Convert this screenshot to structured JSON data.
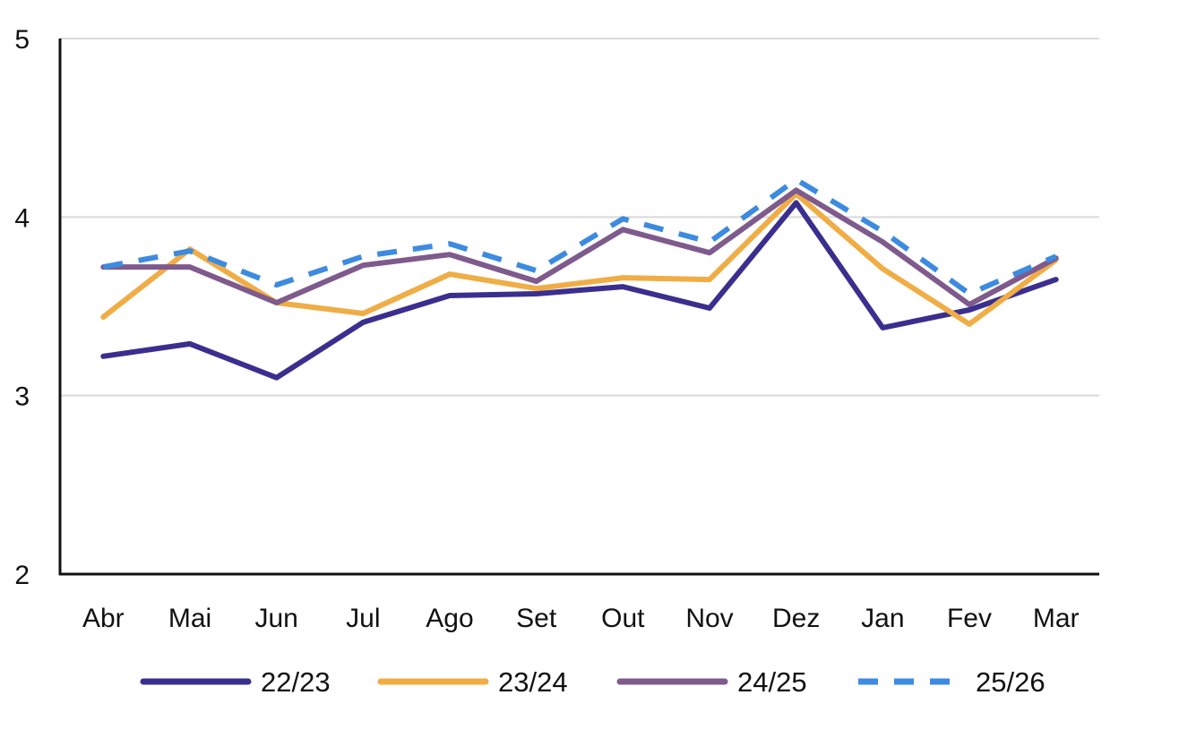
{
  "chart_data": {
    "type": "line",
    "categories": [
      "Abr",
      "Mai",
      "Jun",
      "Jul",
      "Ago",
      "Set",
      "Out",
      "Nov",
      "Dez",
      "Jan",
      "Fev",
      "Mar"
    ],
    "ylim": [
      2,
      5
    ],
    "yticks": [
      "2",
      "3",
      "4",
      "5"
    ],
    "grid": true,
    "legend_position": "bottom",
    "series": [
      {
        "name": "22/23",
        "color": "#3a2f8f",
        "dashed": false,
        "values": [
          3.22,
          3.29,
          3.1,
          3.41,
          3.56,
          3.57,
          3.61,
          3.49,
          4.08,
          3.38,
          3.48,
          3.65
        ]
      },
      {
        "name": "23/24",
        "color": "#f0ad45",
        "dashed": false,
        "values": [
          3.44,
          3.82,
          3.52,
          3.46,
          3.68,
          3.6,
          3.66,
          3.65,
          4.13,
          3.71,
          3.4,
          3.76
        ]
      },
      {
        "name": "24/25",
        "color": "#7e5a8d",
        "dashed": false,
        "values": [
          3.72,
          3.72,
          3.52,
          3.73,
          3.79,
          3.64,
          3.93,
          3.8,
          4.15,
          3.86,
          3.51,
          3.77
        ]
      },
      {
        "name": "25/26",
        "color": "#3d8be0",
        "dashed": true,
        "values": [
          3.72,
          3.81,
          3.62,
          3.78,
          3.85,
          3.7,
          3.99,
          3.86,
          4.21,
          3.92,
          3.57,
          3.78
        ]
      }
    ]
  }
}
